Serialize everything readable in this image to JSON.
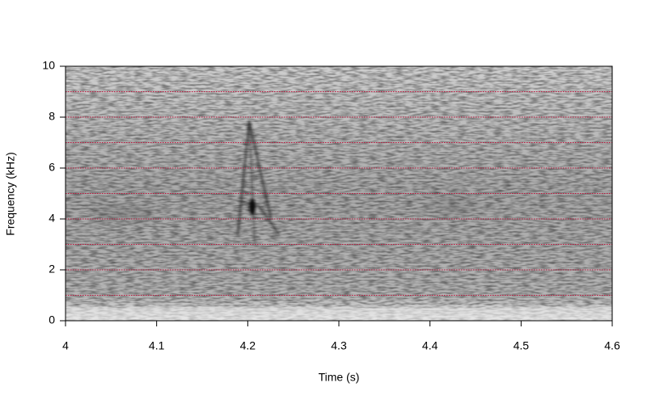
{
  "chart_data": {
    "type": "spectrogram",
    "xlabel": "Time (s)",
    "ylabel": "Frequency (kHz)",
    "xlim": [
      4,
      4.6
    ],
    "xticks": [
      4,
      4.1,
      4.2,
      4.3,
      4.4,
      4.5,
      4.6
    ],
    "ylim": [
      0,
      10
    ],
    "yticks": [
      0,
      2,
      4,
      6,
      8,
      10
    ],
    "grid_y": [
      1,
      2,
      3,
      4,
      5,
      6,
      7,
      8,
      9
    ],
    "grid_color": "#c0143c"
  }
}
